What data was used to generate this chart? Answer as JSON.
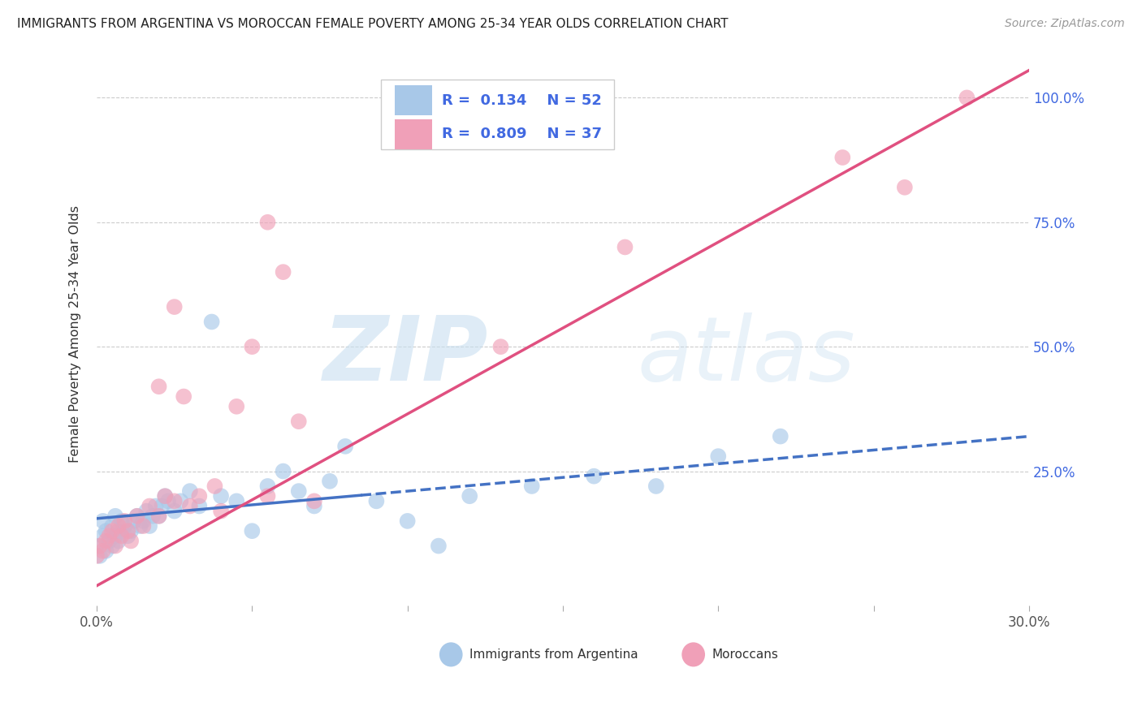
{
  "title": "IMMIGRANTS FROM ARGENTINA VS MOROCCAN FEMALE POVERTY AMONG 25-34 YEAR OLDS CORRELATION CHART",
  "source": "Source: ZipAtlas.com",
  "ylabel": "Female Poverty Among 25-34 Year Olds",
  "xlim": [
    0.0,
    0.3
  ],
  "ylim": [
    -0.02,
    1.07
  ],
  "xticks": [
    0.0,
    0.05,
    0.1,
    0.15,
    0.2,
    0.25,
    0.3
  ],
  "ytick_positions": [
    0.0,
    0.25,
    0.5,
    0.75,
    1.0
  ],
  "yticklabels_right": [
    "",
    "25.0%",
    "50.0%",
    "75.0%",
    "100.0%"
  ],
  "watermark_zip": "ZIP",
  "watermark_atlas": "atlas",
  "legend1_R": "0.134",
  "legend1_N": "52",
  "legend2_R": "0.809",
  "legend2_N": "37",
  "blue_color": "#a8c8e8",
  "pink_color": "#f0a0b8",
  "line_blue": "#4472C4",
  "line_pink": "#E05080",
  "R_color": "#4169E1",
  "argentina_x": [
    0.0,
    0.001,
    0.002,
    0.002,
    0.003,
    0.003,
    0.004,
    0.005,
    0.005,
    0.006,
    0.006,
    0.007,
    0.007,
    0.008,
    0.009,
    0.01,
    0.011,
    0.012,
    0.013,
    0.014,
    0.015,
    0.016,
    0.017,
    0.018,
    0.019,
    0.02,
    0.021,
    0.022,
    0.023,
    0.025,
    0.027,
    0.03,
    0.033,
    0.037,
    0.04,
    0.045,
    0.05,
    0.055,
    0.06,
    0.065,
    0.07,
    0.075,
    0.08,
    0.09,
    0.1,
    0.11,
    0.12,
    0.14,
    0.16,
    0.18,
    0.2,
    0.22
  ],
  "argentina_y": [
    0.1,
    0.08,
    0.12,
    0.15,
    0.09,
    0.13,
    0.11,
    0.1,
    0.14,
    0.12,
    0.16,
    0.13,
    0.11,
    0.15,
    0.14,
    0.12,
    0.13,
    0.15,
    0.16,
    0.14,
    0.15,
    0.17,
    0.14,
    0.16,
    0.18,
    0.16,
    0.18,
    0.2,
    0.19,
    0.17,
    0.19,
    0.21,
    0.18,
    0.55,
    0.2,
    0.19,
    0.13,
    0.22,
    0.25,
    0.21,
    0.18,
    0.23,
    0.3,
    0.19,
    0.15,
    0.1,
    0.2,
    0.22,
    0.24,
    0.22,
    0.28,
    0.32
  ],
  "morocco_x": [
    0.0,
    0.001,
    0.002,
    0.003,
    0.004,
    0.005,
    0.006,
    0.007,
    0.008,
    0.009,
    0.01,
    0.011,
    0.013,
    0.015,
    0.017,
    0.02,
    0.022,
    0.025,
    0.028,
    0.03,
    0.033,
    0.038,
    0.04,
    0.045,
    0.05,
    0.055,
    0.06,
    0.065,
    0.07,
    0.02,
    0.025,
    0.055,
    0.13,
    0.17,
    0.24,
    0.26,
    0.28
  ],
  "morocco_y": [
    0.08,
    0.1,
    0.09,
    0.11,
    0.12,
    0.13,
    0.1,
    0.14,
    0.12,
    0.15,
    0.13,
    0.11,
    0.16,
    0.14,
    0.18,
    0.16,
    0.2,
    0.19,
    0.4,
    0.18,
    0.2,
    0.22,
    0.17,
    0.38,
    0.5,
    0.2,
    0.65,
    0.35,
    0.19,
    0.42,
    0.58,
    0.75,
    0.5,
    0.7,
    0.88,
    0.82,
    1.0
  ],
  "line_blue_intercept": 0.155,
  "line_blue_slope": 0.55,
  "line_pink_intercept": 0.02,
  "line_pink_slope": 3.45
}
